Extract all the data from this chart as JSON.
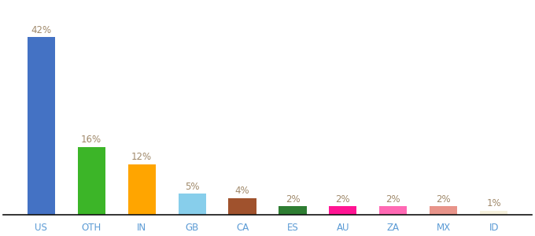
{
  "categories": [
    "US",
    "OTH",
    "IN",
    "GB",
    "CA",
    "ES",
    "AU",
    "ZA",
    "MX",
    "ID"
  ],
  "values": [
    42,
    16,
    12,
    5,
    4,
    2,
    2,
    2,
    2,
    1
  ],
  "labels": [
    "42%",
    "16%",
    "12%",
    "5%",
    "4%",
    "2%",
    "2%",
    "2%",
    "2%",
    "1%"
  ],
  "colors": [
    "#4472C4",
    "#3CB528",
    "#FFA500",
    "#87CEEB",
    "#A0522D",
    "#2E7D32",
    "#FF1493",
    "#FF69B4",
    "#E8948A",
    "#F5F0DC"
  ],
  "label_fontsize": 8.5,
  "tick_fontsize": 8.5,
  "label_color": "#A0896A",
  "ylim": [
    0,
    50
  ],
  "background_color": "#ffffff",
  "bar_width": 0.55
}
